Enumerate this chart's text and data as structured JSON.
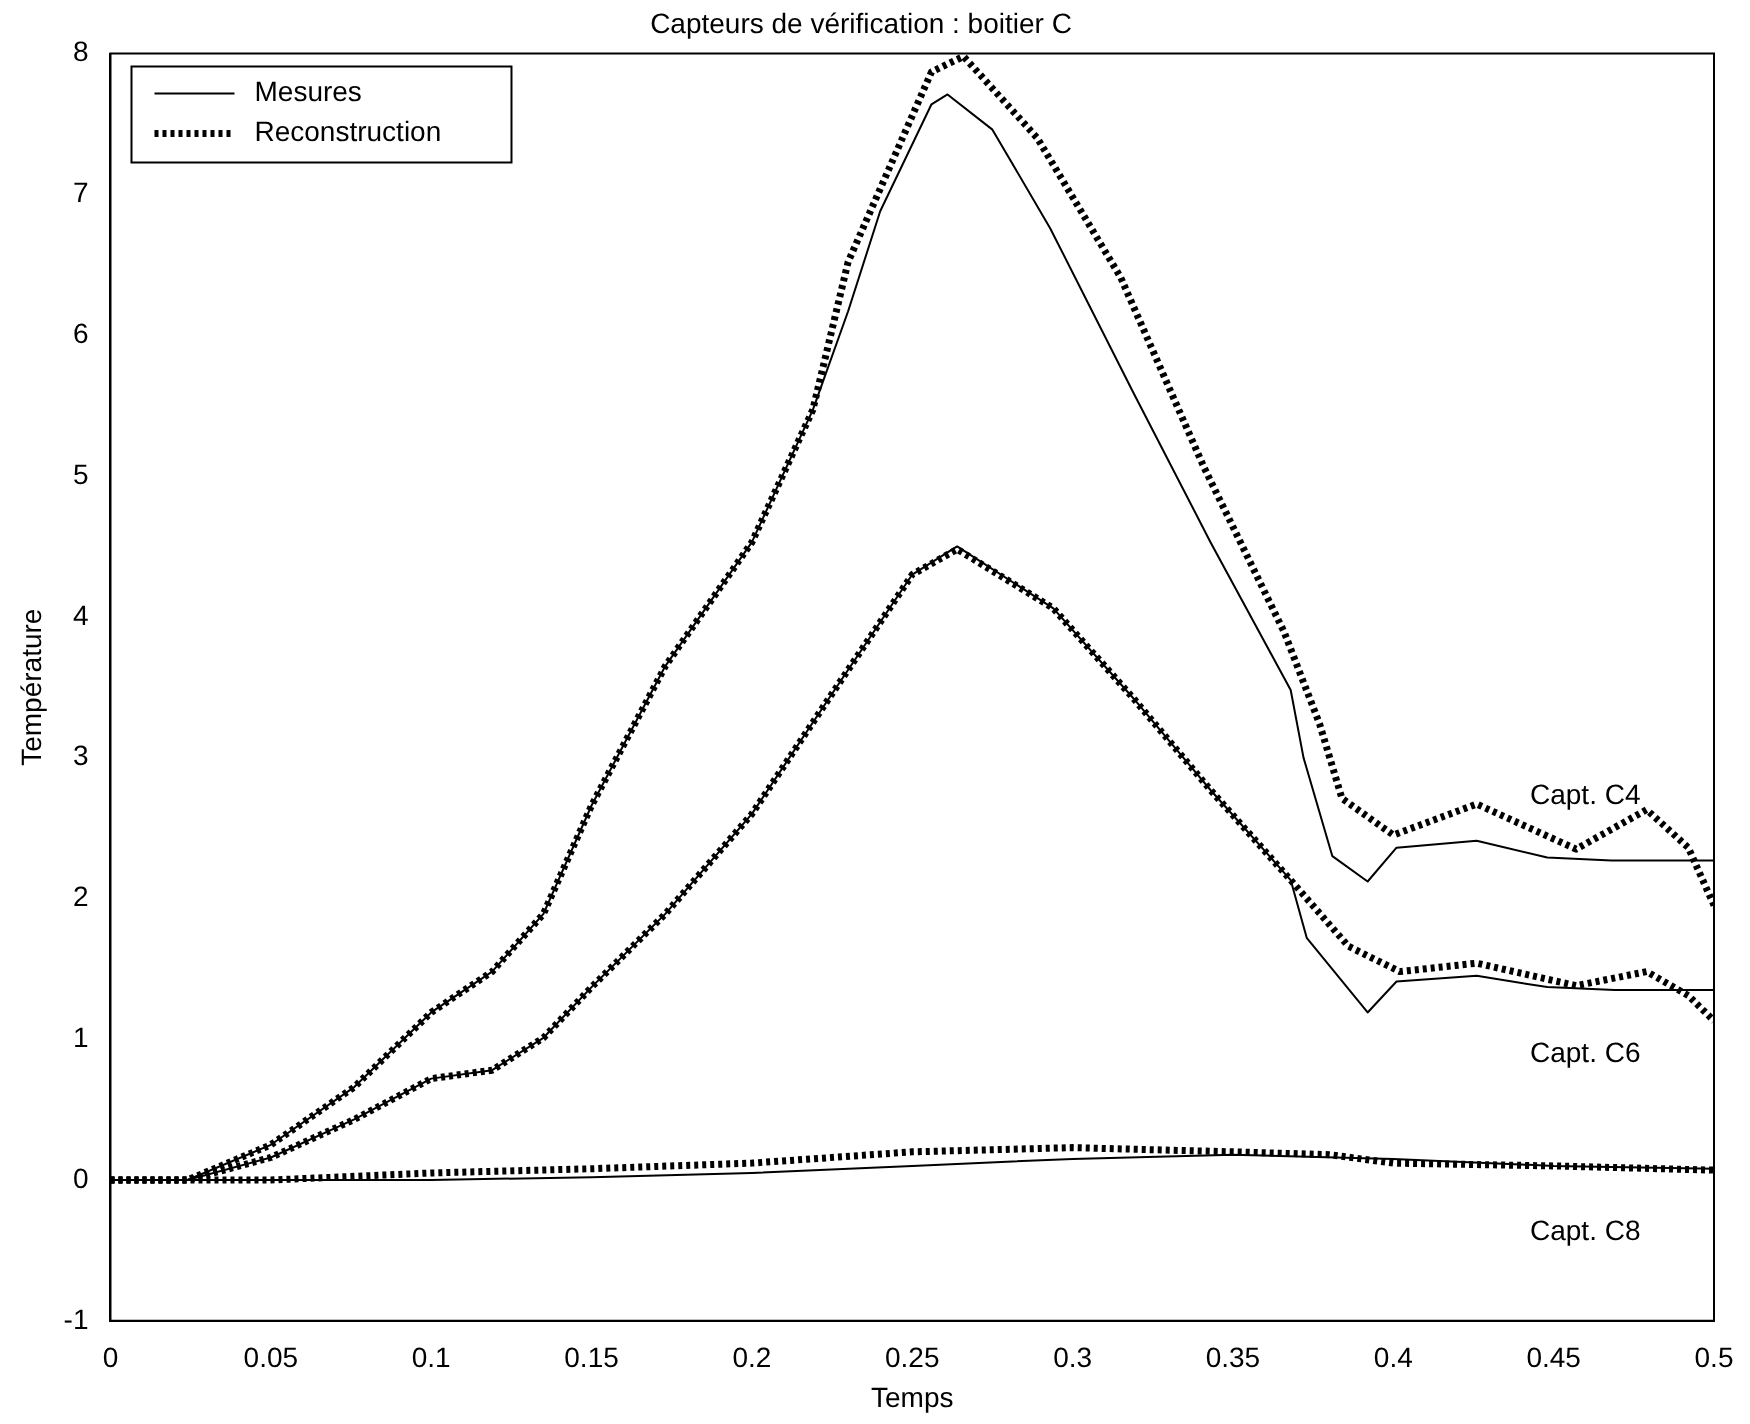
{
  "chart_data": {
    "type": "line",
    "title": "Capteurs de vérification : boitier C",
    "xlabel": "Temps",
    "ylabel": "Température",
    "xlim": [
      0,
      0.5
    ],
    "ylim": [
      -1,
      8
    ],
    "xticks": [
      0,
      0.05,
      0.1,
      0.15,
      0.2,
      0.25,
      0.3,
      0.35,
      0.4,
      0.45,
      0.5
    ],
    "yticks": [
      -1,
      0,
      1,
      2,
      3,
      4,
      5,
      6,
      7,
      8
    ],
    "grid": false,
    "legend": "top left",
    "marker": "none",
    "series": [
      {
        "name": "Mesures",
        "color": "#000000",
        "line_style": "solid",
        "x": [
          0,
          0.024,
          0.05,
          0.076,
          0.1,
          0.119,
          0.135,
          0.15,
          0.173,
          0.2,
          0.219,
          0.23,
          0.24,
          0.256,
          0.261,
          0.275,
          0.293,
          0.319,
          0.343,
          0.368,
          0.372,
          0.381,
          0.392,
          0.401,
          0.426,
          0.448,
          0.468,
          0.5
        ],
        "values": [
          0,
          0,
          0.25,
          0.66,
          1.19,
          1.48,
          1.89,
          2.66,
          3.65,
          4.53,
          5.47,
          6.17,
          6.88,
          7.64,
          7.71,
          7.46,
          6.76,
          5.59,
          4.53,
          3.48,
          3.0,
          2.3,
          2.12,
          2.36,
          2.41,
          2.29,
          2.27,
          2.27
        ]
      },
      {
        "name": "Reconstruction",
        "color": "#000000",
        "line_style": "dotted",
        "x": [
          0,
          0.024,
          0.05,
          0.076,
          0.1,
          0.119,
          0.135,
          0.15,
          0.173,
          0.2,
          0.219,
          0.23,
          0.256,
          0.266,
          0.289,
          0.315,
          0.341,
          0.366,
          0.377,
          0.384,
          0.4,
          0.426,
          0.457,
          0.479,
          0.492,
          0.5
        ],
        "values": [
          0,
          0,
          0.25,
          0.66,
          1.19,
          1.48,
          1.89,
          2.66,
          3.65,
          4.53,
          5.47,
          6.52,
          7.87,
          7.98,
          7.4,
          6.41,
          5.06,
          3.89,
          3.24,
          2.71,
          2.45,
          2.67,
          2.35,
          2.63,
          2.36,
          1.95
        ]
      },
      {
        "color": "#000000",
        "line_style": "solid",
        "x": [
          0,
          0.024,
          0.05,
          0.076,
          0.1,
          0.119,
          0.135,
          0.15,
          0.173,
          0.2,
          0.224,
          0.25,
          0.264,
          0.294,
          0.319,
          0.343,
          0.368,
          0.373,
          0.392,
          0.401,
          0.426,
          0.448,
          0.469,
          0.5
        ],
        "values": [
          0,
          0,
          0.16,
          0.43,
          0.72,
          0.78,
          1.01,
          1.37,
          1.89,
          2.6,
          3.42,
          4.3,
          4.5,
          4.06,
          3.42,
          2.77,
          2.13,
          1.72,
          1.19,
          1.41,
          1.45,
          1.37,
          1.35,
          1.35
        ]
      },
      {
        "color": "#000000",
        "line_style": "dotted",
        "x": [
          0,
          0.024,
          0.05,
          0.076,
          0.1,
          0.119,
          0.135,
          0.15,
          0.173,
          0.2,
          0.224,
          0.25,
          0.264,
          0.294,
          0.319,
          0.343,
          0.368,
          0.386,
          0.402,
          0.426,
          0.457,
          0.479,
          0.492,
          0.5
        ],
        "values": [
          0,
          0,
          0.16,
          0.43,
          0.72,
          0.78,
          1.01,
          1.37,
          1.89,
          2.6,
          3.42,
          4.3,
          4.48,
          4.06,
          3.42,
          2.77,
          2.13,
          1.66,
          1.48,
          1.54,
          1.38,
          1.48,
          1.31,
          1.13
        ]
      },
      {
        "color": "#000000",
        "line_style": "solid",
        "x": [
          0,
          0.1,
          0.15,
          0.2,
          0.25,
          0.3,
          0.35,
          0.4,
          0.45,
          0.5
        ],
        "values": [
          0,
          0,
          0.02,
          0.05,
          0.1,
          0.15,
          0.18,
          0.15,
          0.1,
          0.08
        ]
      },
      {
        "color": "#000000",
        "line_style": "dotted",
        "x": [
          0,
          0.05,
          0.1,
          0.15,
          0.2,
          0.25,
          0.3,
          0.35,
          0.38,
          0.4,
          0.45,
          0.5
        ],
        "values": [
          0,
          0,
          0.05,
          0.08,
          0.12,
          0.2,
          0.23,
          0.2,
          0.18,
          0.12,
          0.1,
          0.07
        ]
      }
    ],
    "annotations": [
      "Capt. C4",
      "Capt. C6",
      "Capt. C8"
    ]
  }
}
